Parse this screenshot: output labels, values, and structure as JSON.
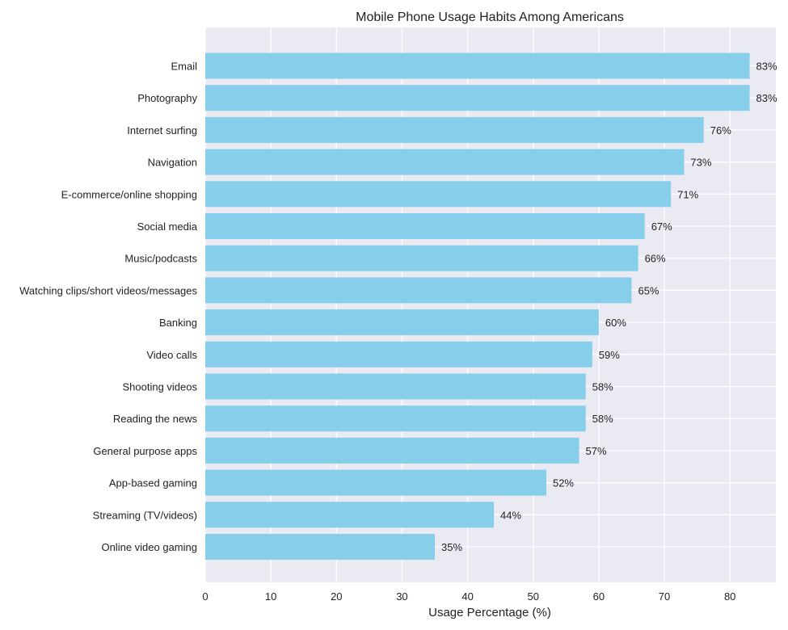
{
  "chart_data": {
    "type": "bar",
    "orientation": "horizontal",
    "title": "Mobile Phone Usage Habits Among Americans",
    "xlabel": "Usage Percentage (%)",
    "ylabel": "",
    "xlim": [
      0,
      87
    ],
    "x_ticks": [
      0,
      10,
      20,
      30,
      40,
      50,
      60,
      70,
      80
    ],
    "grid": true,
    "bar_color": "#87CEEB",
    "plot_background": "#EAEAF2",
    "grid_color": "#FFFFFF",
    "value_suffix": "%",
    "categories": [
      "Email",
      "Photography",
      "Internet surfing",
      "Navigation",
      "E-commerce/online shopping",
      "Social media",
      "Music/podcasts",
      "Watching clips/short videos/messages",
      "Banking",
      "Video calls",
      "Shooting videos",
      "Reading the news",
      "General purpose apps",
      "App-based gaming",
      "Streaming (TV/videos)",
      "Online video gaming"
    ],
    "values": [
      83,
      83,
      76,
      73,
      71,
      67,
      66,
      65,
      60,
      59,
      58,
      58,
      57,
      52,
      44,
      35
    ]
  }
}
